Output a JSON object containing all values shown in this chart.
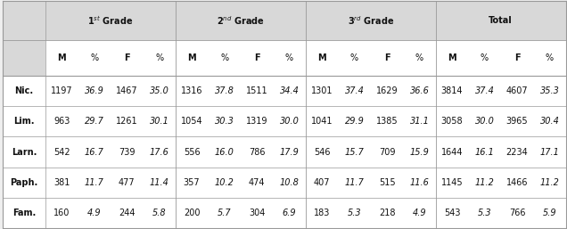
{
  "header_groups": [
    "1$^{st}$ Grade",
    "2$^{nd}$ Grade",
    "3$^{rd}$ Grade",
    "Total"
  ],
  "subheaders": [
    "M",
    "%",
    "F",
    "%"
  ],
  "row_labels": [
    "Nic.",
    "Lim.",
    "Larn.",
    "Paph.",
    "Fam."
  ],
  "rows": [
    [
      1197,
      "36.9",
      1467,
      "35.0",
      1316,
      "37.8",
      1511,
      "34.4",
      1301,
      "37.4",
      1629,
      "36.6",
      3814,
      "37.4",
      4607,
      "35.3"
    ],
    [
      963,
      "29.7",
      1261,
      "30.1",
      1054,
      "30.3",
      1319,
      "30.0",
      1041,
      "29.9",
      1385,
      "31.1",
      3058,
      "30.0",
      3965,
      "30.4"
    ],
    [
      542,
      "16.7",
      739,
      "17.6",
      556,
      "16.0",
      786,
      "17.9",
      546,
      "15.7",
      709,
      "15.9",
      1644,
      "16.1",
      2234,
      "17.1"
    ],
    [
      381,
      "11.7",
      477,
      "11.4",
      357,
      "10.2",
      474,
      "10.8",
      407,
      "11.7",
      515,
      "11.6",
      1145,
      "11.2",
      1466,
      "11.2"
    ],
    [
      160,
      "4.9",
      244,
      "5.8",
      200,
      "5.7",
      304,
      "6.9",
      183,
      "5.3",
      218,
      "4.9",
      543,
      "5.3",
      766,
      "5.9"
    ]
  ],
  "bg_header_group": "#d8d8d8",
  "bg_white": "#ffffff",
  "text_color": "#111111",
  "line_color": "#999999",
  "fig_bg": "#efefef"
}
